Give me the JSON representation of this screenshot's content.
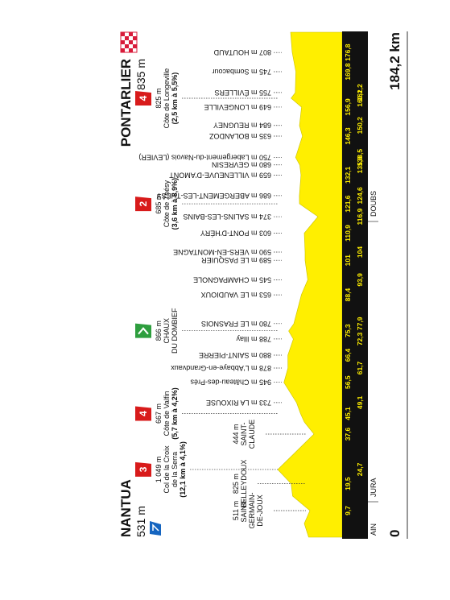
{
  "start": {
    "name": "NANTUA",
    "altitude": "531 m"
  },
  "finish": {
    "name": "PONTARLIER",
    "altitude": "835 m"
  },
  "stops": [
    {
      "km": {
        "value": 9.7,
        "label": "9,7"
      },
      "valley": [
        "511 m",
        "SAINT-",
        "GERMAIN-",
        "DE-JOUX"
      ]
    },
    {
      "km": {
        "value": 19.5,
        "label": "19,5"
      },
      "valley": [
        "825 m",
        "BELLEYDOUX"
      ]
    },
    {
      "km": {
        "value": 24.7,
        "label": "24,7"
      },
      "climb": {
        "category": "3",
        "lines": [
          "1 049 m",
          "Col de la Croix",
          "de la Serra",
          "(12,1 km à 4,1%)"
        ]
      }
    },
    {
      "km": {
        "value": 37.6,
        "label": "37,6"
      },
      "valley": [
        "444 m",
        "SAINT-",
        "CLAUDE"
      ]
    },
    {
      "km": {
        "value": 45.1,
        "label": "45,1"
      },
      "climb": {
        "category": "4",
        "lines": [
          "667 m",
          "Côte de Valfin",
          "(5,7 km à 4,2%)"
        ]
      }
    },
    {
      "km": {
        "value": 49.1,
        "label": "49,1"
      },
      "town": "733 m LA RIXOUSE"
    },
    {
      "km": {
        "value": 56.5,
        "label": "56,5"
      },
      "town": "945 m Château-des-Prés"
    },
    {
      "km": {
        "value": 61.7,
        "label": "61,7"
      },
      "town": "878 m L'Abbaye-en-Grandvaux"
    },
    {
      "km": {
        "value": 66.4,
        "label": "66,4"
      },
      "town": "880 m SAINT-PIERRE"
    },
    {
      "km": {
        "value": 72.3,
        "label": "72,3"
      },
      "town": "788 m Illay"
    },
    {
      "km": {
        "value": 75.3,
        "label": "75,3"
      },
      "sprint": [
        "866 m",
        "CHAUX",
        "DU DOMBIEF"
      ]
    },
    {
      "km": {
        "value": 77.9,
        "label": "77,9"
      },
      "town": "780 m LE FRASNOIS"
    },
    {
      "km": {
        "value": 88.4,
        "label": "88,4"
      },
      "town": "653 m LE VAUDIOUX"
    },
    {
      "km": {
        "value": 93.9,
        "label": "93,9"
      },
      "town": "545 m CHAMPAGNOLE"
    },
    {
      "km": 101,
      "town": "589 m LE PASQUIER"
    },
    {
      "km": 104,
      "town": "590 m VERS-EN-MONTAGNE"
    },
    {
      "km": {
        "value": 110.9,
        "label": "110,9"
      },
      "town": "603 m PONT-D'HÉRY"
    },
    {
      "km": {
        "value": 116.9,
        "label": "116,9"
      },
      "town": "374 m SALINS-LES-BAINS"
    },
    {
      "km": {
        "value": 121.6,
        "label": "121,6"
      },
      "climb": {
        "category": "2",
        "lines": [
          "685 m",
          "Côte de Thésy",
          "(3,6 km à 8,9%)"
        ]
      }
    },
    {
      "km": {
        "value": 124.6,
        "label": "124,6"
      },
      "town": "686 m ABERGEMENT-LES-THÉSY"
    },
    {
      "km": {
        "value": 132.1,
        "label": "132,1"
      },
      "town": "659 m VILLENEUVE-D'AMONT"
    },
    {
      "km": {
        "value": 135.8,
        "label": "135,8"
      },
      "town": "680 m GEVRESIN"
    },
    {
      "km": {
        "value": 138.5,
        "label": "138,5"
      },
      "town": "750 m Labergement-du-Navois (LEVIER)"
    },
    {
      "km": {
        "value": 146.3,
        "label": "146,3"
      },
      "town": "635 m BOLANDOZ"
    },
    {
      "km": {
        "value": 150.2,
        "label": "150,2"
      },
      "town": "684 m REUGNEY"
    },
    {
      "km": {
        "value": 156.9,
        "label": "156,9"
      },
      "town": "649 m LONGEVILLE"
    },
    {
      "km": {
        "value": 160.1,
        "label": "160,1"
      },
      "climb": {
        "category": "4",
        "lines": [
          "825 m",
          "Côte de Longeville",
          "(2,5 km à 5,5%)"
        ]
      }
    },
    {
      "km": {
        "value": 162.2,
        "label": "162,2"
      },
      "town": "755 m ÉVILLERS"
    },
    {
      "km": {
        "value": 169.8,
        "label": "169,8"
      },
      "town": "745 m Sombacour"
    },
    {
      "km": {
        "value": 176.8,
        "label": "176,8"
      },
      "town": "807 m HOUTAUD"
    }
  ],
  "regions": [
    "AIN",
    "JURA",
    "DOUBS"
  ],
  "distance": {
    "start": {
      "value": 0,
      "label": "0"
    },
    "end": {
      "value": 184.2,
      "label": "184,2 km"
    }
  }
}
